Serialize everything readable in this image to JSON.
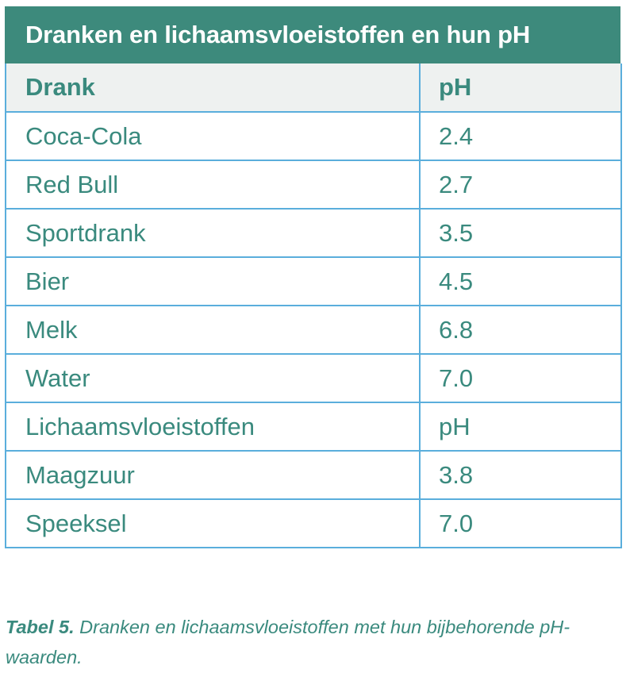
{
  "table": {
    "title": "Dranken en lichaamsvloeistoffen en hun pH",
    "header": {
      "drink": "Drank",
      "ph": "pH"
    },
    "rows": [
      {
        "name": "Coca-Cola",
        "ph": "2.4"
      },
      {
        "name": "Red Bull",
        "ph": "2.7"
      },
      {
        "name": "Sportdrank",
        "ph": "3.5"
      },
      {
        "name": "Bier",
        "ph": "4.5"
      },
      {
        "name": "Melk",
        "ph": "6.8"
      },
      {
        "name": "Water",
        "ph": "7.0"
      },
      {
        "name": "Lichaamsvloeistoffen",
        "ph": "pH"
      },
      {
        "name": "Maagzuur",
        "ph": "3.8"
      },
      {
        "name": "Speeksel",
        "ph": "7.0"
      }
    ]
  },
  "caption": {
    "label": "Tabel 5.",
    "text": "Dranken en lichaamsvloeistoffen met hun bijbehorende pH-waarden."
  },
  "colors": {
    "title_bg": "#3d8a7c",
    "header_bg": "#eef1f0",
    "text": "#3a8a7e",
    "border": "#5aaedc"
  }
}
